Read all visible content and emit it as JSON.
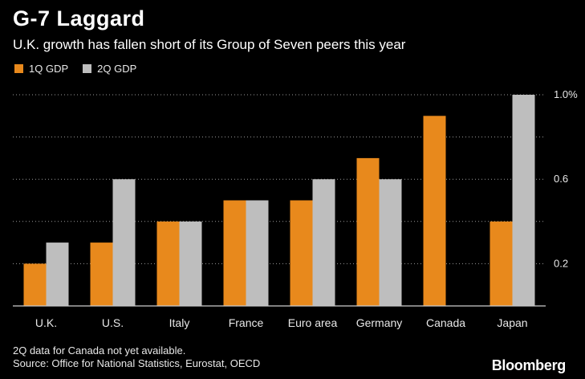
{
  "title": "G-7 Laggard",
  "subtitle": "U.K. growth has fallen short of its Group of Seven peers this year",
  "footnote": {
    "line1": "2Q data for Canada not yet available.",
    "line2": "Source: Office for National Statistics, Eurostat, OECD"
  },
  "brand": "Bloomberg",
  "colors": {
    "q1": "#E8891C",
    "q2": "#BEBEBE",
    "grid": "#9a9a9a",
    "axis": "#cccccc"
  },
  "chart_data": {
    "type": "bar",
    "categories": [
      "U.K.",
      "U.S.",
      "Italy",
      "France",
      "Euro area",
      "Germany",
      "Canada",
      "Japan"
    ],
    "series": [
      {
        "name": "1Q GDP",
        "values": [
          0.2,
          0.3,
          0.4,
          0.5,
          0.5,
          0.7,
          0.9,
          0.4
        ]
      },
      {
        "name": "2Q GDP",
        "values": [
          0.3,
          0.6,
          0.4,
          0.5,
          0.6,
          0.6,
          null,
          1.0
        ]
      }
    ],
    "ylim": [
      0.0,
      1.0
    ],
    "yticks": [
      0.2,
      0.6,
      1.0
    ],
    "ytick_labels": [
      "0.2",
      "0.6",
      "1.0%"
    ],
    "gridlines": [
      0.2,
      0.4,
      0.6,
      0.8,
      1.0
    ],
    "grid": true,
    "legend_position": "top-left"
  }
}
